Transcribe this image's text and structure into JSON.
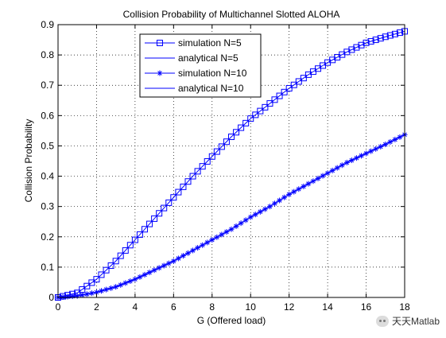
{
  "chart_data": {
    "type": "line",
    "title": "Collision Probability of Multichannel Slotted ALOHA",
    "xlabel": "G (Offered load)",
    "ylabel": "Collision Probability",
    "xlim": [
      0,
      18
    ],
    "ylim": [
      0,
      0.9
    ],
    "xticks": [
      "0",
      "2",
      "4",
      "6",
      "8",
      "10",
      "12",
      "14",
      "16",
      "18"
    ],
    "yticks": [
      "0",
      "0.1",
      "0.2",
      "0.3",
      "0.4",
      "0.5",
      "0.6",
      "0.7",
      "0.8",
      "0.9"
    ],
    "grid": true,
    "legend_position": "top-center",
    "series": [
      {
        "name": "simulation N=5",
        "marker": "square",
        "color": "#0000ff",
        "x": [
          0,
          1,
          2,
          3,
          4,
          5,
          6,
          7,
          8,
          9,
          10,
          11,
          12,
          13,
          14,
          15,
          16,
          17,
          18
        ],
        "values": [
          0.0,
          0.015,
          0.06,
          0.12,
          0.19,
          0.26,
          0.33,
          0.4,
          0.465,
          0.53,
          0.59,
          0.64,
          0.69,
          0.735,
          0.775,
          0.81,
          0.84,
          0.86,
          0.878
        ]
      },
      {
        "name": "analytical N=5",
        "marker": "none",
        "color": "#0000ff",
        "x": [
          0,
          1,
          2,
          3,
          4,
          5,
          6,
          7,
          8,
          9,
          10,
          11,
          12,
          13,
          14,
          15,
          16,
          17,
          18
        ],
        "values": [
          0.0,
          0.015,
          0.06,
          0.12,
          0.19,
          0.26,
          0.33,
          0.4,
          0.465,
          0.53,
          0.59,
          0.64,
          0.69,
          0.735,
          0.775,
          0.81,
          0.84,
          0.86,
          0.878
        ]
      },
      {
        "name": "simulation N=10",
        "marker": "star",
        "color": "#0000ff",
        "x": [
          0,
          1,
          2,
          3,
          4,
          5,
          6,
          7,
          8,
          9,
          10,
          11,
          12,
          13,
          14,
          15,
          16,
          17,
          18
        ],
        "values": [
          0.0,
          0.005,
          0.017,
          0.035,
          0.06,
          0.09,
          0.12,
          0.155,
          0.19,
          0.225,
          0.265,
          0.3,
          0.34,
          0.375,
          0.41,
          0.445,
          0.475,
          0.505,
          0.537
        ]
      },
      {
        "name": "analytical N=10",
        "marker": "none",
        "color": "#0000ff",
        "x": [
          0,
          1,
          2,
          3,
          4,
          5,
          6,
          7,
          8,
          9,
          10,
          11,
          12,
          13,
          14,
          15,
          16,
          17,
          18
        ],
        "values": [
          0.0,
          0.005,
          0.017,
          0.035,
          0.06,
          0.09,
          0.12,
          0.155,
          0.19,
          0.225,
          0.265,
          0.3,
          0.34,
          0.375,
          0.41,
          0.445,
          0.475,
          0.505,
          0.537
        ]
      }
    ]
  },
  "watermark": {
    "text": "天天Matlab",
    "icon": "wechat-icon"
  }
}
